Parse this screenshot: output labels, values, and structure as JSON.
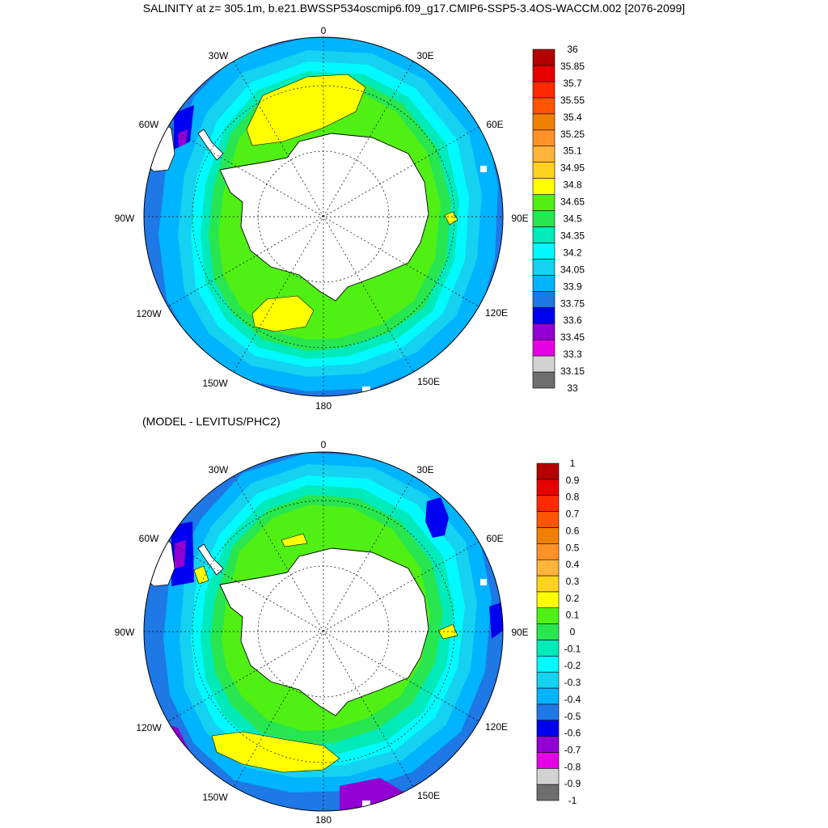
{
  "title": "SALINITY at z= 305.1m, b.e21.BWSSP534oscmip6.f09_g17.CMIP6-SSP5-3.4OS-WACCM.002 [2076-2099]",
  "subtitle": "(MODEL - LEVITUS/PHC2)",
  "longitude_labels": [
    "0",
    "30E",
    "60E",
    "90E",
    "120E",
    "150E",
    "180",
    "150W",
    "120W",
    "90W",
    "60W",
    "30W"
  ],
  "colors": {
    "bin_colors": [
      "#6e6e6e",
      "#d2d2d2",
      "#e600e6",
      "#9300d3",
      "#0000f0",
      "#1e78e6",
      "#00b4ff",
      "#14d2f0",
      "#00faff",
      "#00eaba",
      "#28e650",
      "#50f014",
      "#ffff00",
      "#ffd21e",
      "#ffb43c",
      "#ff9228",
      "#f08000",
      "#ff5500",
      "#ff2a00",
      "#e60000",
      "#b40000"
    ],
    "land": "#ffffff",
    "coast": "#000000"
  },
  "maps": [
    {
      "name": "salinity",
      "colorbar_labels": [
        "36",
        "35.85",
        "35.7",
        "35.55",
        "35.4",
        "35.25",
        "35.1",
        "34.95",
        "34.8",
        "34.65",
        "34.5",
        "34.35",
        "34.2",
        "34.05",
        "33.9",
        "33.75",
        "33.6",
        "33.45",
        "33.3",
        "33.15",
        "33"
      ]
    },
    {
      "name": "difference",
      "colorbar_labels": [
        "1",
        "0.9",
        "0.8",
        "0.7",
        "0.6",
        "0.5",
        "0.4",
        "0.3",
        "0.2",
        "0.1",
        "0",
        "-0.1",
        "-0.2",
        "-0.3",
        "-0.4",
        "-0.5",
        "-0.6",
        "-0.7",
        "-0.8",
        "-0.9",
        "-1"
      ]
    }
  ]
}
